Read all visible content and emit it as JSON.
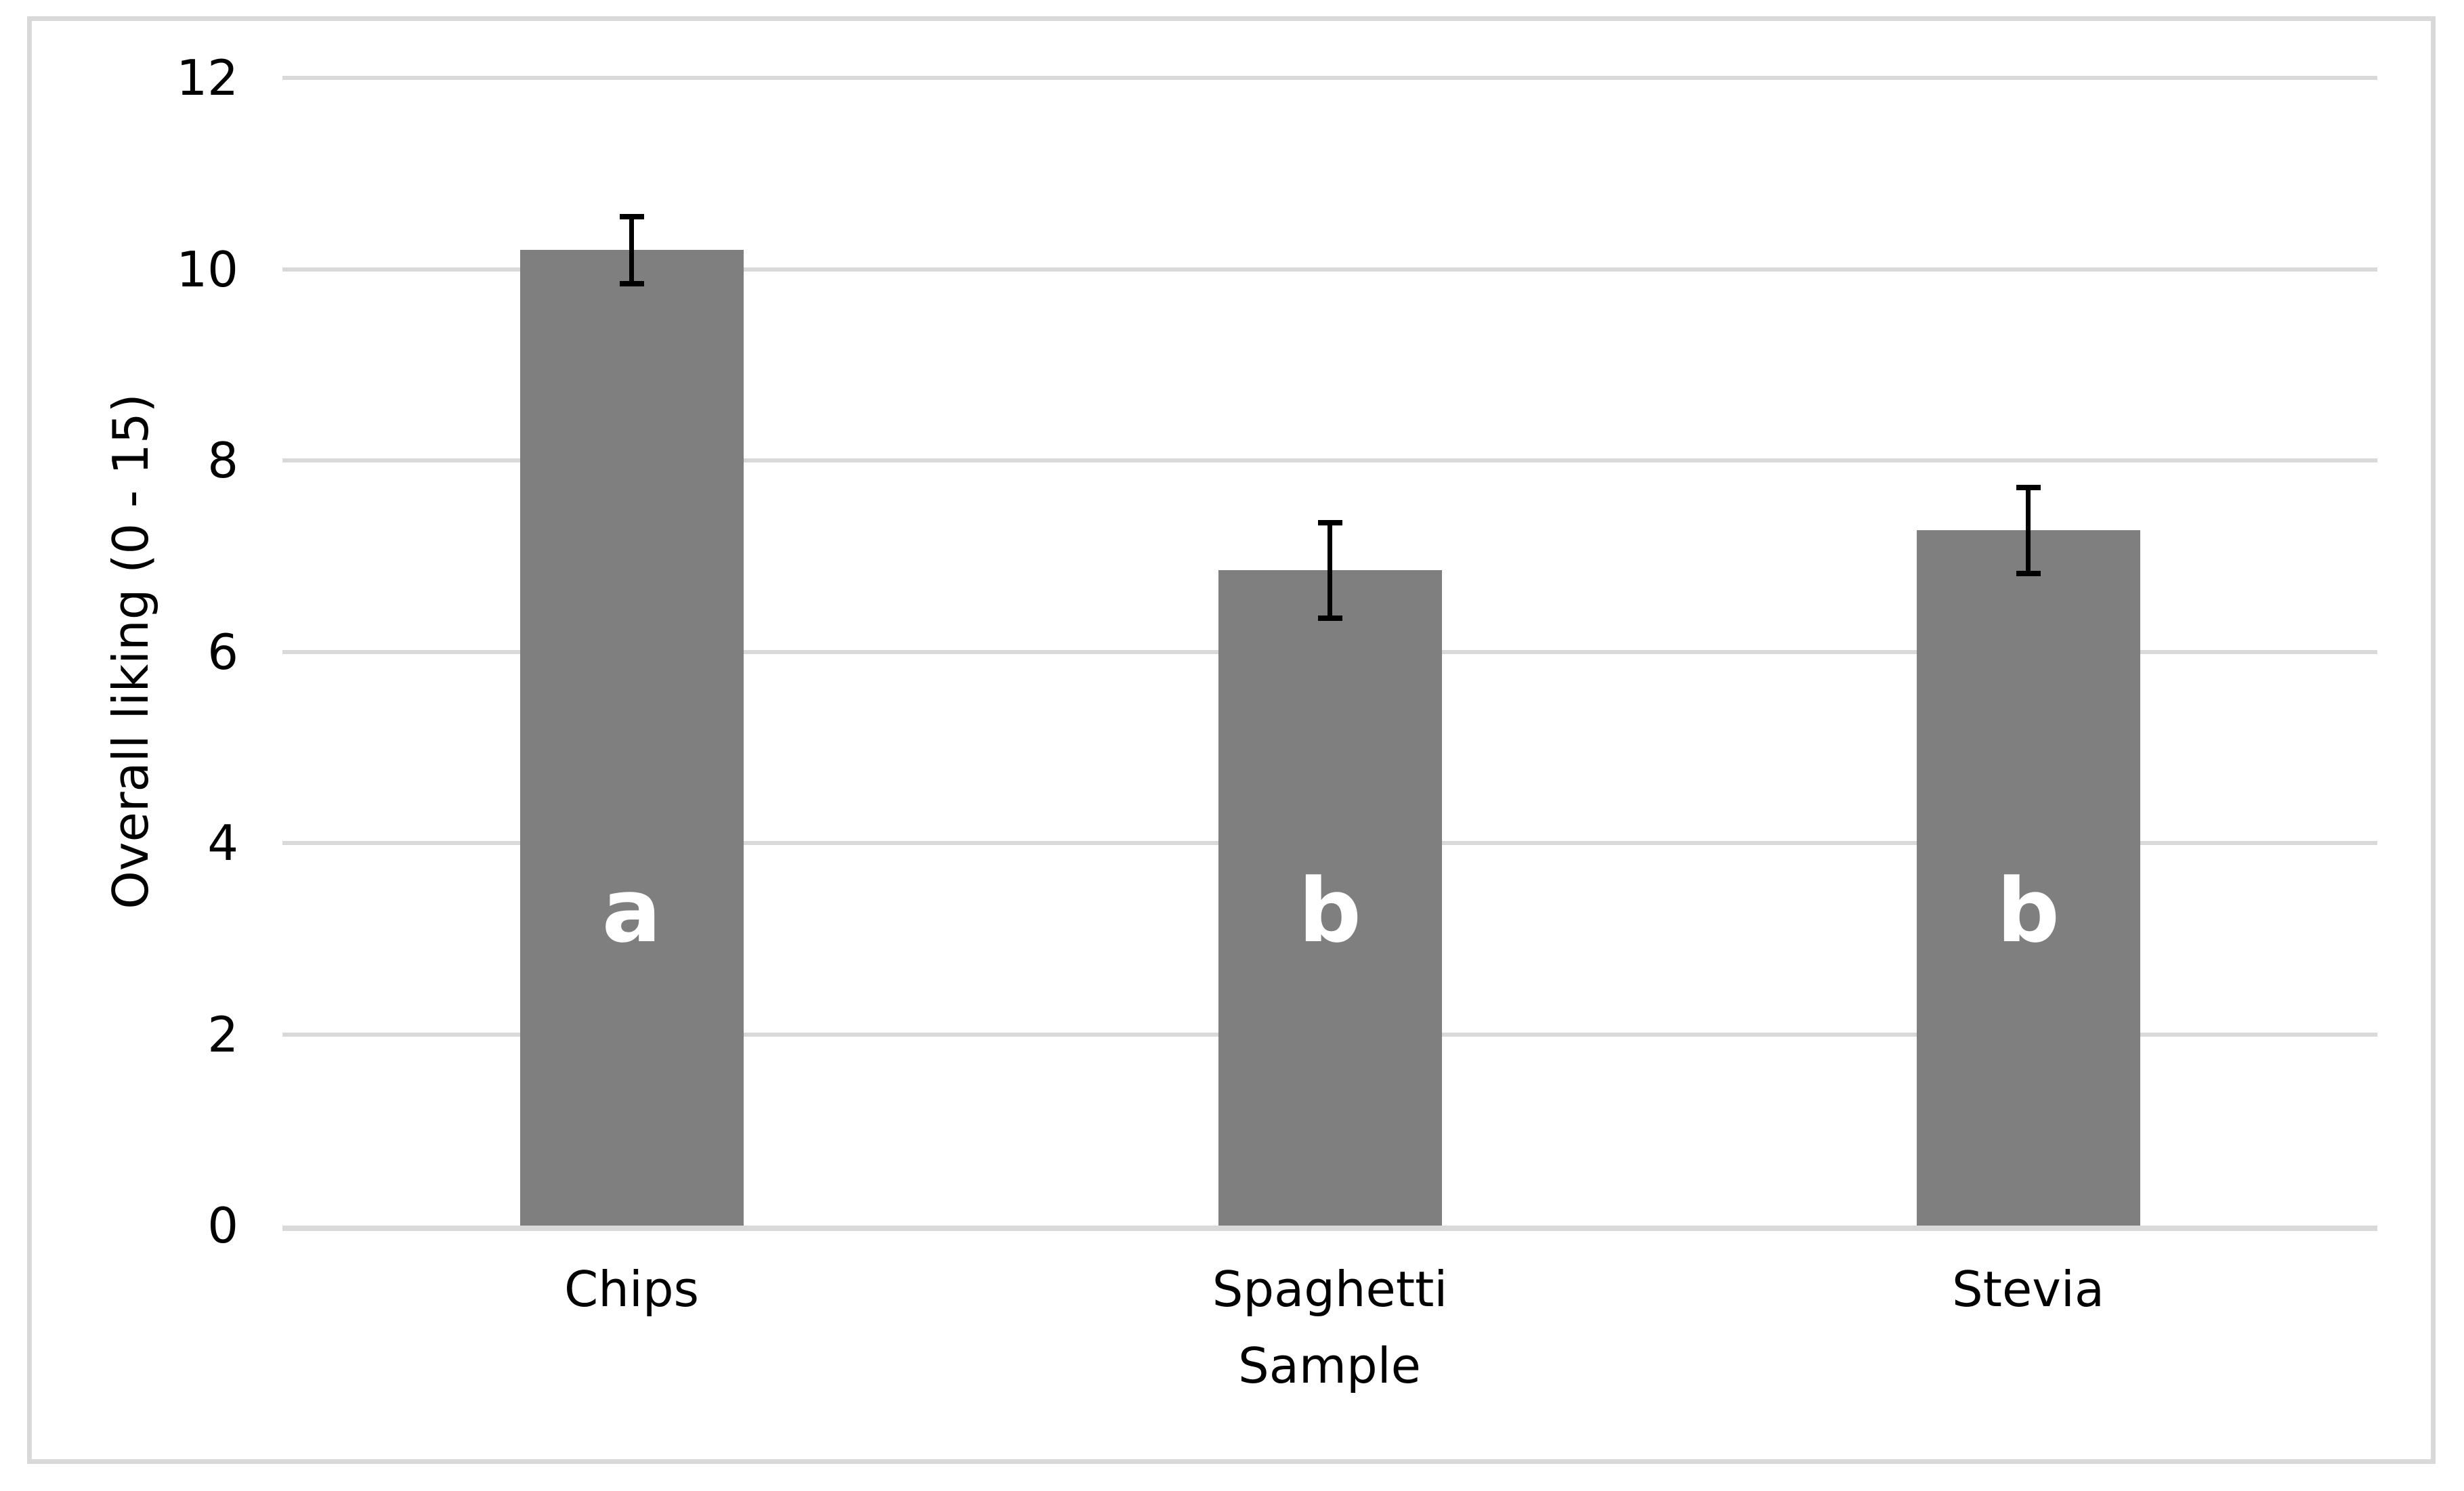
{
  "chart_data": {
    "type": "bar",
    "title": "",
    "categories": [
      "Chips",
      "Spaghetti",
      "Stevia"
    ],
    "values": [
      10.2,
      6.85,
      7.27
    ],
    "error_bars": [
      0.35,
      0.5,
      0.45
    ],
    "bar_letters": [
      "a",
      "b",
      "b"
    ],
    "xlabel": "Sample",
    "ylabel": "Overall liking (0 - 15)",
    "yticks": [
      0,
      2,
      4,
      6,
      8,
      10,
      12
    ],
    "ylim": [
      0,
      12
    ],
    "grid": "horizontal-only",
    "legend": "none",
    "colors": {
      "bar": "#7f7f7f",
      "gridline": "#d9d9d9",
      "frame_border": "#d9d9d9",
      "error_bar": "#000000",
      "bar_letter": "#ffffff",
      "text": "#000000"
    }
  }
}
